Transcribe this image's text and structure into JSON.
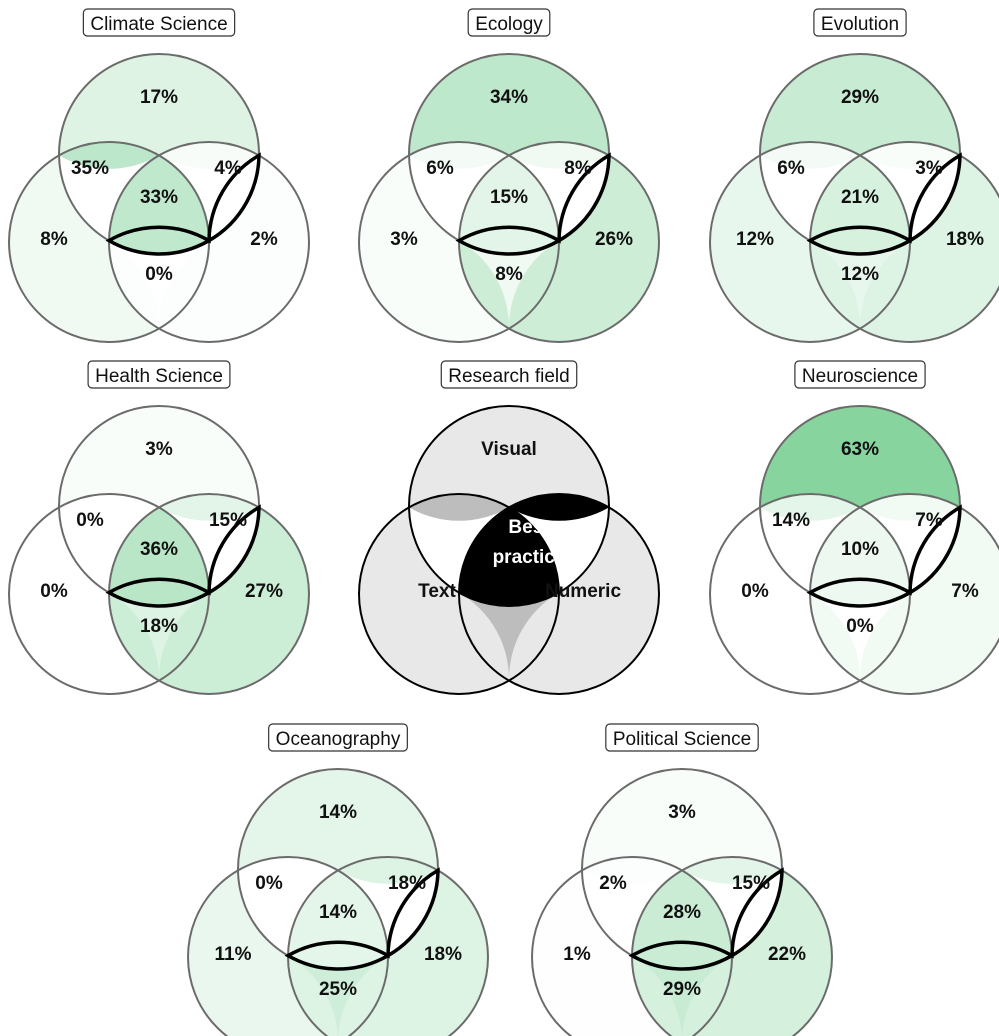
{
  "colors": {
    "circle_stroke": "#6b6b6b",
    "best_stroke": "#000000",
    "shade_scale": [
      "#ffffff",
      "#87d49f"
    ],
    "key_region": "#e8e8e8",
    "key_pair": "#bdbdbd",
    "key_best": "#000000"
  },
  "key": {
    "title": "Research field",
    "labels": {
      "visual": "Visual",
      "text": "Text",
      "numeric": "Numeric",
      "best_line1": "Best",
      "best_line2": "practice"
    }
  },
  "venns": [
    {
      "name": "Climate Science",
      "labels": {
        "visual": "17%",
        "text": "8%",
        "numeric": "2%",
        "visual_text": "35%",
        "visual_numeric": "4%",
        "text_numeric": "0%",
        "all": "33%"
      },
      "shares": {
        "visual": 17,
        "text": 8,
        "numeric": 2,
        "visual_text": 35,
        "visual_numeric": 4,
        "text_numeric": 0,
        "all": 33
      }
    },
    {
      "name": "Ecology",
      "labels": {
        "visual": "34%",
        "text": "3%",
        "numeric": "26%",
        "visual_text": "6%",
        "visual_numeric": "8%",
        "text_numeric": "8%",
        "all": "15%"
      },
      "shares": {
        "visual": 34,
        "text": 3,
        "numeric": 26,
        "visual_text": 6,
        "visual_numeric": 8,
        "text_numeric": 8,
        "all": 15
      }
    },
    {
      "name": "Evolution",
      "labels": {
        "visual": "29%",
        "text": "12%",
        "numeric": "18%",
        "visual_text": "6%",
        "visual_numeric": "3%",
        "text_numeric": "12%",
        "all": "21%"
      },
      "shares": {
        "visual": 29,
        "text": 12,
        "numeric": 18,
        "visual_text": 6,
        "visual_numeric": 3,
        "text_numeric": 12,
        "all": 21
      }
    },
    {
      "name": "Health Science",
      "labels": {
        "visual": "3%",
        "text": "0%",
        "numeric": "27%",
        "visual_text": "0%",
        "visual_numeric": "15%",
        "text_numeric": "18%",
        "all": "36%"
      },
      "shares": {
        "visual": 3,
        "text": 0,
        "numeric": 27,
        "visual_text": 0,
        "visual_numeric": 15,
        "text_numeric": 18,
        "all": 36
      }
    },
    {
      "name": "Neuroscience",
      "labels": {
        "visual": "63%",
        "text": "0%",
        "numeric": "7%",
        "visual_text": "14%",
        "visual_numeric": "7%",
        "text_numeric": "0%",
        "all": "10%"
      },
      "shares": {
        "visual": 63,
        "text": 0,
        "numeric": 7,
        "visual_text": 14,
        "visual_numeric": 7,
        "text_numeric": 0,
        "all": 10
      }
    },
    {
      "name": "Oceanography",
      "labels": {
        "visual": "14%",
        "text": "11%",
        "numeric": "18%",
        "visual_text": "0%",
        "visual_numeric": "18%",
        "text_numeric": "25%",
        "all": "14%"
      },
      "shares": {
        "visual": 14,
        "text": 11,
        "numeric": 18,
        "visual_text": 0,
        "visual_numeric": 18,
        "text_numeric": 25,
        "all": 14
      }
    },
    {
      "name": "Political Science",
      "labels": {
        "visual": "3%",
        "text": "1%",
        "numeric": "22%",
        "visual_text": "2%",
        "visual_numeric": "15%",
        "text_numeric": "29%",
        "all": "28%"
      },
      "shares": {
        "visual": 3,
        "text": 1,
        "numeric": 22,
        "visual_text": 2,
        "visual_numeric": 15,
        "text_numeric": 29,
        "all": 28
      }
    }
  ]
}
